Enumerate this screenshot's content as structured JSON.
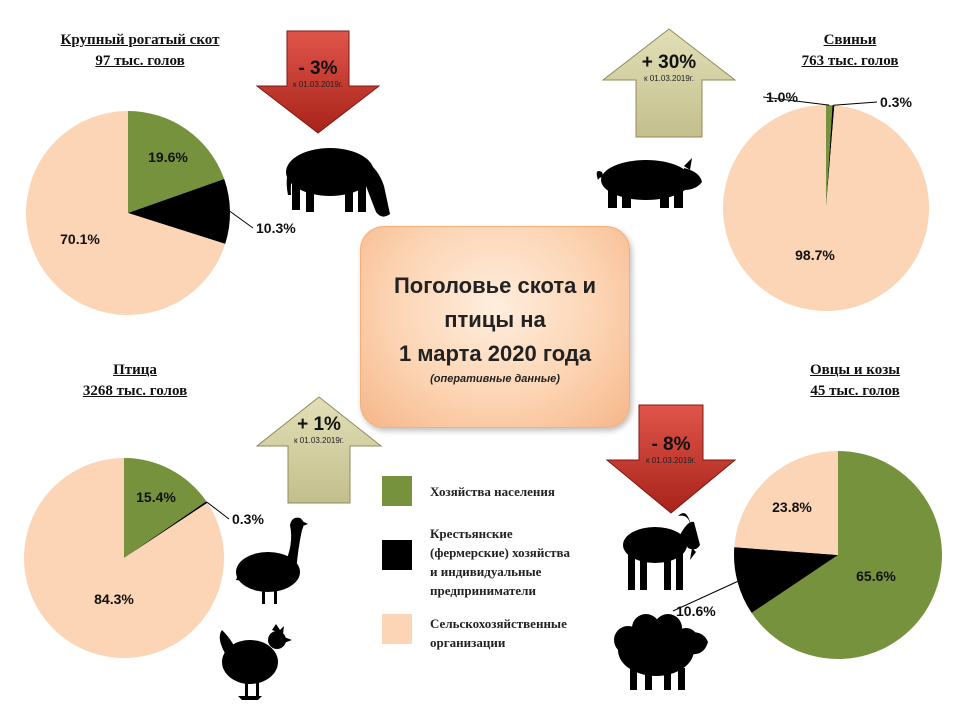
{
  "center": {
    "title_lines": [
      "Поголовье скота и",
      "птицы на",
      "1 марта 2020 года"
    ],
    "subtitle": "(оперативные данные)"
  },
  "colors": {
    "households": "#76923c",
    "farmers": "#000000",
    "agro_orgs": "#fbd5b5",
    "arrow_down": "#c0392b",
    "arrow_up": "#d4d1a4"
  },
  "legend": [
    {
      "color": "#76923c",
      "lines": [
        "Хозяйства населения"
      ]
    },
    {
      "color": "#000000",
      "lines": [
        "Крестьянские",
        "(фермерские) хозяйства",
        "и индивидуальные",
        "предприниматели"
      ]
    },
    {
      "color": "#fbd5b5",
      "lines": [
        "Сельскохозяйственные",
        "организации"
      ]
    }
  ],
  "arrows": [
    {
      "direction": "down",
      "value": "- 3%",
      "date": "к 01.03.2019г."
    },
    {
      "direction": "up",
      "value": "+ 30%",
      "date": "к 01.03.2019г."
    },
    {
      "direction": "up",
      "value": "+ 1%",
      "date": "к 01.03.2019г."
    },
    {
      "direction": "down",
      "value": "- 8%",
      "date": "к 01.03.2019г."
    }
  ],
  "animals": [
    "cow-icon",
    "pig-icon",
    "goose-icon",
    "hen-icon",
    "goat-icon",
    "sheep-icon"
  ],
  "chart_data": [
    {
      "type": "pie",
      "title": "Крупный рогатый скот",
      "subtitle": "97  тыс. голов",
      "slices": [
        {
          "name": "Хозяйства населения",
          "value": 19.6,
          "label": "19.6%"
        },
        {
          "name": "Крестьянские (фермерские) хозяйства и индивидуальные предприниматели",
          "value": 10.3,
          "label": "10.3%"
        },
        {
          "name": "Сельскохозяйственные организации",
          "value": 70.1,
          "label": "70.1%"
        }
      ]
    },
    {
      "type": "pie",
      "title": "Свиньи",
      "subtitle": "763 тыс. голов",
      "slices": [
        {
          "name": "Хозяйства населения",
          "value": 1.0,
          "label": "1.0%"
        },
        {
          "name": "Крестьянские (фермерские) хозяйства и индивидуальные предприниматели",
          "value": 0.3,
          "label": "0.3%"
        },
        {
          "name": "Сельскохозяйственные организации",
          "value": 98.7,
          "label": "98.7%"
        }
      ]
    },
    {
      "type": "pie",
      "title": "Птица",
      "subtitle": "3268 тыс. голов",
      "slices": [
        {
          "name": "Хозяйства населения",
          "value": 15.4,
          "label": "15.4%"
        },
        {
          "name": "Крестьянские (фермерские) хозяйства и индивидуальные предприниматели",
          "value": 0.3,
          "label": "0.3%"
        },
        {
          "name": "Сельскохозяйственные организации",
          "value": 84.3,
          "label": "84.3%"
        }
      ]
    },
    {
      "type": "pie",
      "title": "Овцы и козы",
      "subtitle": "45 тыс. голов",
      "slices": [
        {
          "name": "Хозяйства населения",
          "value": 65.6,
          "label": "65.6%"
        },
        {
          "name": "Крестьянские (фермерские) хозяйства и индивидуальные предприниматели",
          "value": 10.6,
          "label": "10.6%"
        },
        {
          "name": "Сельскохозяйственные организации",
          "value": 23.8,
          "label": "23.8%"
        }
      ]
    }
  ]
}
